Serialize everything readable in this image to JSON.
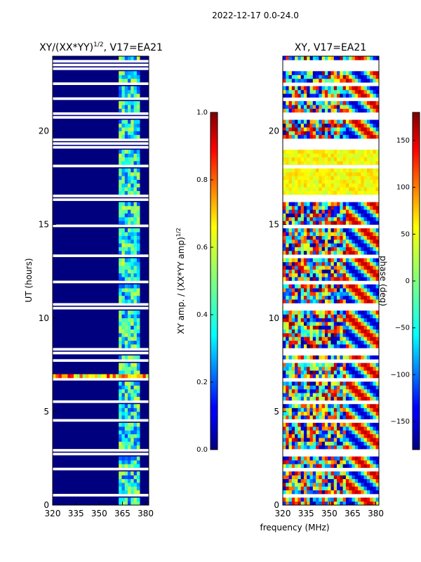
{
  "suptitle": "2022-12-17 0.0-24.0",
  "shared": {
    "xlabel": "frequency (MHz)"
  },
  "colors": {
    "frame": "#000000",
    "gap": "#ffffff",
    "background": "#00007f"
  },
  "chart_data": [
    {
      "type": "heatmap",
      "title": "XY/(XX*YY)",
      "title_superscript": "1/2",
      "title_suffix": ", V17=EA21",
      "xlabel": "",
      "ylabel": "UT (hours)",
      "xlim": [
        320,
        382
      ],
      "ylim": [
        0,
        24
      ],
      "xticks": [
        320,
        335,
        350,
        365,
        380
      ],
      "yticks": [
        0,
        5,
        10,
        15,
        20
      ],
      "colorbar": {
        "label": "XY amp. / (XX*YY amp)",
        "label_superscript": "1/2",
        "range": [
          0.0,
          1.0
        ],
        "ticks": [
          0.0,
          0.2,
          0.4,
          0.6,
          0.8,
          1.0
        ],
        "tick_labels": [
          "0.0",
          "0.2",
          "0.4",
          "0.6",
          "0.8",
          "1.0"
        ],
        "colormap": "jet"
      },
      "features": [
        {
          "name": "bright channels",
          "freq_range": [
            362,
            378
          ],
          "value": 0.45
        },
        {
          "name": "flare band",
          "time_range": [
            6.5,
            7.0
          ],
          "value": 0.85
        }
      ]
    },
    {
      "type": "heatmap",
      "title": "XY, V17=EA21",
      "xlabel": "frequency (MHz)",
      "ylabel": "",
      "xlim": [
        320,
        382
      ],
      "ylim": [
        0,
        24
      ],
      "xticks": [
        320,
        335,
        350,
        365,
        380
      ],
      "yticks": [
        0,
        5,
        10,
        15,
        20
      ],
      "colorbar": {
        "label": "phase (deg)",
        "range": [
          -180,
          180
        ],
        "ticks": [
          -150,
          -100,
          -50,
          0,
          50,
          100,
          150
        ],
        "tick_labels": [
          "−150",
          "−100",
          "−50",
          "0",
          "50",
          "100",
          "150"
        ],
        "colormap": "jet"
      },
      "features": [
        {
          "name": "phase ramp region",
          "freq_range": [
            359,
            382
          ]
        },
        {
          "name": "uniform phase block",
          "time_range": [
            16.2,
            19.2
          ],
          "value": 45
        }
      ]
    }
  ]
}
